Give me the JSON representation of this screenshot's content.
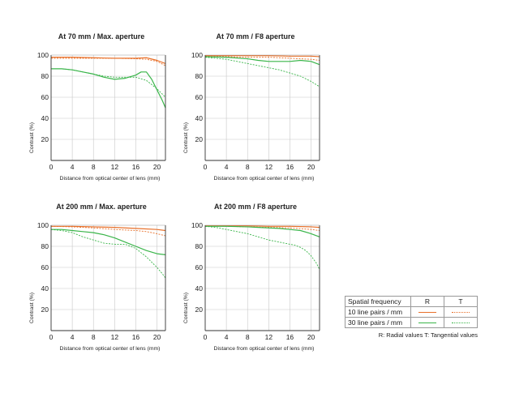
{
  "colors": {
    "r10": "#e8702a",
    "t10": "#e8702a",
    "r30": "#3ab54a",
    "t30": "#3ab54a",
    "axis": "#333333",
    "grid": "#c8c8c8",
    "text": "#222222"
  },
  "legend": {
    "header": "Spatial frequency",
    "col_r": "R",
    "col_t": "T",
    "row1": "10 line pairs / mm",
    "row2": "30 line pairs / mm",
    "note": "R: Radial values  T: Tangential values"
  },
  "chart_data": [
    {
      "type": "line",
      "title": "At 70 mm / Max. aperture",
      "xlabel": "Distance from optical center of lens (mm)",
      "ylabel": "Contrast (%)",
      "xlim": [
        0,
        21.6
      ],
      "ylim": [
        0,
        100
      ],
      "xticks": [
        0,
        4,
        8,
        12,
        16,
        20
      ],
      "yticks": [
        20,
        40,
        60,
        80,
        100
      ],
      "grid": true,
      "series": [
        {
          "name": "10 line pairs / mm R",
          "x": [
            0,
            4,
            8,
            12,
            16,
            18,
            20,
            21.6
          ],
          "y": [
            98,
            98,
            97.5,
            97,
            97,
            97.5,
            95,
            92
          ]
        },
        {
          "name": "10 line pairs / mm T",
          "x": [
            0,
            4,
            8,
            12,
            16,
            18,
            20,
            21.6
          ],
          "y": [
            97,
            97,
            97,
            97,
            96.5,
            96,
            94,
            90
          ]
        },
        {
          "name": "30 line pairs / mm R",
          "x": [
            0,
            2,
            4,
            6,
            8,
            10,
            12,
            14,
            16,
            17,
            18,
            19,
            20,
            21,
            21.6
          ],
          "y": [
            87,
            87,
            86,
            84,
            82,
            79,
            77,
            78,
            81,
            84,
            84,
            77,
            67,
            57,
            50
          ]
        },
        {
          "name": "30 line pairs / mm T",
          "x": [
            0,
            2,
            4,
            6,
            8,
            10,
            12,
            14,
            16,
            18,
            19,
            20,
            21,
            21.6
          ],
          "y": [
            87,
            87,
            86,
            84,
            82,
            80,
            79,
            79,
            79,
            76,
            72,
            68,
            63,
            60
          ]
        }
      ]
    },
    {
      "type": "line",
      "title": "At 70 mm / F8 aperture",
      "xlabel": "Distance from optical center of lens (mm)",
      "ylabel": "Contrast (%)",
      "xlim": [
        0,
        21.6
      ],
      "ylim": [
        0,
        100
      ],
      "xticks": [
        0,
        4,
        8,
        12,
        16,
        20
      ],
      "yticks": [
        20,
        40,
        60,
        80,
        100
      ],
      "grid": true,
      "series": [
        {
          "name": "10 line pairs / mm R",
          "x": [
            0,
            4,
            8,
            12,
            16,
            20,
            21.6
          ],
          "y": [
            99.5,
            99.5,
            99.5,
            99.5,
            99,
            99,
            98.5
          ]
        },
        {
          "name": "10 line pairs / mm T",
          "x": [
            0,
            4,
            8,
            12,
            16,
            20,
            21.6
          ],
          "y": [
            99,
            98.5,
            98,
            98,
            97,
            96,
            95
          ]
        },
        {
          "name": "30 line pairs / mm R",
          "x": [
            0,
            4,
            8,
            10,
            12,
            14,
            16,
            18,
            20,
            21.6
          ],
          "y": [
            98.5,
            98,
            96.5,
            95,
            94,
            94,
            94,
            95,
            94,
            91
          ]
        },
        {
          "name": "30 line pairs / mm T",
          "x": [
            0,
            2,
            4,
            6,
            8,
            10,
            12,
            14,
            16,
            18,
            20,
            21.6
          ],
          "y": [
            98,
            97,
            96,
            94,
            92,
            90,
            88,
            86,
            83,
            80,
            75,
            70
          ]
        }
      ]
    },
    {
      "type": "line",
      "title": "At 200 mm / Max. aperture",
      "xlabel": "Distance from optical center of lens (mm)",
      "ylabel": "Contrast (%)",
      "xlim": [
        0,
        21.6
      ],
      "ylim": [
        0,
        100
      ],
      "xticks": [
        0,
        4,
        8,
        12,
        16,
        20
      ],
      "yticks": [
        20,
        40,
        60,
        80,
        100
      ],
      "grid": true,
      "series": [
        {
          "name": "10 line pairs / mm R",
          "x": [
            0,
            4,
            8,
            12,
            16,
            20,
            21.6
          ],
          "y": [
            99,
            99,
            98.5,
            98,
            97,
            96,
            95
          ]
        },
        {
          "name": "10 line pairs / mm T",
          "x": [
            0,
            4,
            8,
            12,
            16,
            18,
            20,
            21.6
          ],
          "y": [
            99,
            98.5,
            97.5,
            96,
            95,
            94,
            92,
            90
          ]
        },
        {
          "name": "30 line pairs / mm R",
          "x": [
            0,
            2,
            4,
            6,
            8,
            10,
            12,
            14,
            16,
            18,
            20,
            21.6
          ],
          "y": [
            96,
            96,
            95,
            94,
            93,
            91,
            88,
            84,
            80,
            76,
            73,
            72
          ]
        },
        {
          "name": "30 line pairs / mm T",
          "x": [
            0,
            2,
            4,
            6,
            8,
            10,
            12,
            14,
            16,
            17,
            18,
            19,
            20,
            21,
            21.6
          ],
          "y": [
            96,
            95,
            93,
            89,
            86,
            83,
            82,
            82,
            78,
            74,
            70,
            65,
            60,
            54,
            50
          ]
        }
      ]
    },
    {
      "type": "line",
      "title": "At 200 mm / F8 aperture",
      "xlabel": "Distance from optical center of lens (mm)",
      "ylabel": "Contrast (%)",
      "xlim": [
        0,
        21.6
      ],
      "ylim": [
        0,
        100
      ],
      "xticks": [
        0,
        4,
        8,
        12,
        16,
        20
      ],
      "yticks": [
        20,
        40,
        60,
        80,
        100
      ],
      "grid": true,
      "series": [
        {
          "name": "10 line pairs / mm R",
          "x": [
            0,
            4,
            8,
            12,
            16,
            20,
            21.6
          ],
          "y": [
            99.5,
            99.5,
            99.5,
            99,
            99,
            98.5,
            98
          ]
        },
        {
          "name": "10 line pairs / mm T",
          "x": [
            0,
            4,
            8,
            12,
            16,
            20,
            21.6
          ],
          "y": [
            99.5,
            99,
            98.5,
            98,
            97.5,
            96,
            95
          ]
        },
        {
          "name": "30 line pairs / mm R",
          "x": [
            0,
            4,
            8,
            10,
            12,
            14,
            16,
            18,
            20,
            21.6
          ],
          "y": [
            99,
            99,
            98.5,
            98,
            97.5,
            97,
            96,
            95,
            92,
            89
          ]
        },
        {
          "name": "30 line pairs / mm T",
          "x": [
            0,
            2,
            4,
            6,
            8,
            10,
            12,
            14,
            16,
            17,
            18,
            19,
            20,
            21,
            21.6
          ],
          "y": [
            99,
            98,
            96,
            94,
            92,
            89,
            86,
            84,
            82,
            81,
            79,
            76,
            71,
            64,
            58
          ]
        }
      ]
    }
  ]
}
